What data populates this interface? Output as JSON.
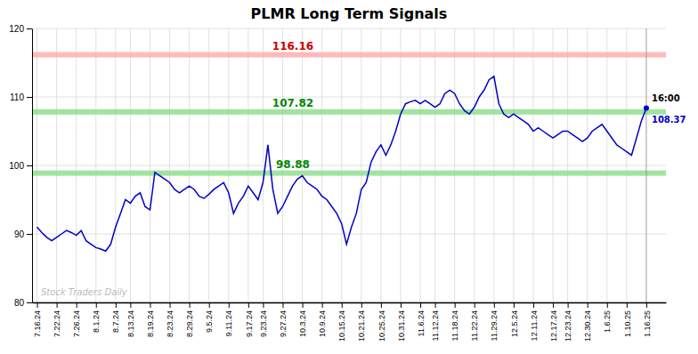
{
  "chart_data": {
    "type": "line",
    "title": "PLMR Long Term Signals",
    "categories": [
      "7.16.24",
      null,
      null,
      null,
      "7.22.24",
      null,
      null,
      null,
      "7.26.24",
      null,
      null,
      null,
      "8.1.24",
      null,
      null,
      null,
      "8.7.24",
      null,
      null,
      "8.13.24",
      null,
      null,
      null,
      "8.19.24",
      null,
      null,
      null,
      "8.23.24",
      null,
      null,
      null,
      "8.29.24",
      null,
      null,
      null,
      "9.5.24",
      null,
      null,
      null,
      "9.11.24",
      null,
      null,
      null,
      "9.17.24",
      null,
      null,
      "9.23.24",
      null,
      null,
      null,
      "9.27.24",
      null,
      null,
      null,
      "10.3.24",
      null,
      null,
      null,
      "10.9.24",
      null,
      null,
      null,
      "10.15.24",
      null,
      null,
      null,
      "10.21.24",
      null,
      null,
      null,
      "10.25.24",
      null,
      null,
      null,
      "10.31.24",
      null,
      null,
      null,
      "11.6.24",
      null,
      null,
      "11.12.24",
      null,
      null,
      null,
      "11.18.24",
      null,
      null,
      null,
      "11.22.24",
      null,
      null,
      null,
      "11.29.24",
      null,
      null,
      null,
      "12.5.24",
      null,
      null,
      null,
      "12.11.24",
      null,
      null,
      null,
      "12.17.24",
      null,
      null,
      "12.23.24",
      null,
      null,
      null,
      "12.30.24",
      null,
      null,
      null,
      "1.6.25",
      null,
      null,
      null,
      "1.10.25",
      null,
      null,
      null,
      "1.16.25"
    ],
    "values": [
      91.0,
      90.2,
      89.5,
      89.0,
      89.5,
      90.0,
      90.5,
      90.2,
      89.8,
      90.5,
      89.0,
      88.5,
      88.0,
      87.8,
      87.5,
      88.5,
      91.0,
      93.0,
      95.0,
      94.5,
      95.5,
      96.0,
      94.0,
      93.5,
      99.0,
      98.5,
      98.0,
      97.5,
      96.5,
      96.0,
      96.5,
      97.0,
      96.5,
      95.5,
      95.2,
      95.8,
      96.5,
      97.0,
      97.5,
      96.0,
      93.0,
      94.5,
      95.5,
      97.0,
      96.0,
      95.0,
      97.5,
      103.0,
      96.5,
      93.0,
      94.0,
      95.5,
      97.0,
      98.0,
      98.5,
      97.5,
      97.0,
      96.5,
      95.5,
      95.0,
      94.0,
      93.0,
      91.5,
      88.5,
      91.0,
      93.0,
      96.5,
      97.5,
      100.5,
      102.0,
      103.0,
      101.5,
      103.0,
      105.0,
      107.5,
      109.0,
      109.3,
      109.5,
      109.0,
      109.5,
      109.0,
      108.5,
      109.0,
      110.5,
      111.0,
      110.5,
      109.0,
      108.0,
      107.5,
      108.5,
      110.0,
      111.0,
      112.5,
      113.0,
      109.0,
      107.5,
      107.0,
      107.5,
      107.0,
      106.5,
      106.0,
      105.0,
      105.5,
      105.0,
      104.5,
      104.0,
      104.5,
      105.0,
      105.0,
      104.5,
      104.0,
      103.5,
      104.0,
      105.0,
      105.5,
      106.0,
      105.0,
      104.0,
      103.0,
      102.5,
      102.0,
      101.5,
      104.0,
      106.5,
      108.37
    ],
    "value_labels": [
      null,
      null,
      null,
      null,
      null,
      null,
      null,
      null,
      null,
      null,
      null,
      null,
      null,
      null,
      null,
      null,
      null,
      null,
      null,
      null,
      null,
      null,
      null,
      null,
      null,
      null,
      null,
      null,
      null,
      null,
      null,
      null,
      null,
      null,
      null,
      null,
      null,
      null,
      null,
      null,
      null,
      null,
      null,
      null,
      null,
      null,
      null,
      null,
      null,
      null,
      null,
      null,
      null,
      null,
      null,
      null,
      null,
      null,
      null,
      null,
      null,
      null,
      null,
      null,
      null,
      null,
      null,
      null,
      null,
      null,
      null,
      null,
      null,
      null,
      null,
      null,
      null,
      null,
      null,
      null,
      null,
      null,
      null,
      null,
      null,
      null,
      null,
      null,
      null,
      null,
      null,
      null,
      null,
      null,
      null,
      null,
      null,
      null,
      null,
      null,
      null,
      null,
      null,
      null,
      null,
      null,
      null,
      null,
      null,
      null,
      null,
      null,
      null,
      null,
      null,
      null,
      null,
      null,
      null,
      null,
      null,
      null,
      null,
      null,
      "108.37"
    ],
    "color": "#0000cc",
    "ylim": [
      80,
      120
    ],
    "yticks": [
      80,
      90,
      100,
      110,
      120
    ],
    "grid": true,
    "bands": [
      {
        "label": "116.16",
        "value": 116.16,
        "color": "#ffaaaa",
        "label_color": "#cc0000"
      },
      {
        "label": "107.82",
        "value": 107.82,
        "color": "#88dd88",
        "label_color": "#008800"
      },
      {
        "label": "98.88",
        "value": 98.88,
        "color": "#88dd88",
        "label_color": "#008800"
      }
    ],
    "time_label": "16:00",
    "watermark": "Stock Traders Daily"
  }
}
